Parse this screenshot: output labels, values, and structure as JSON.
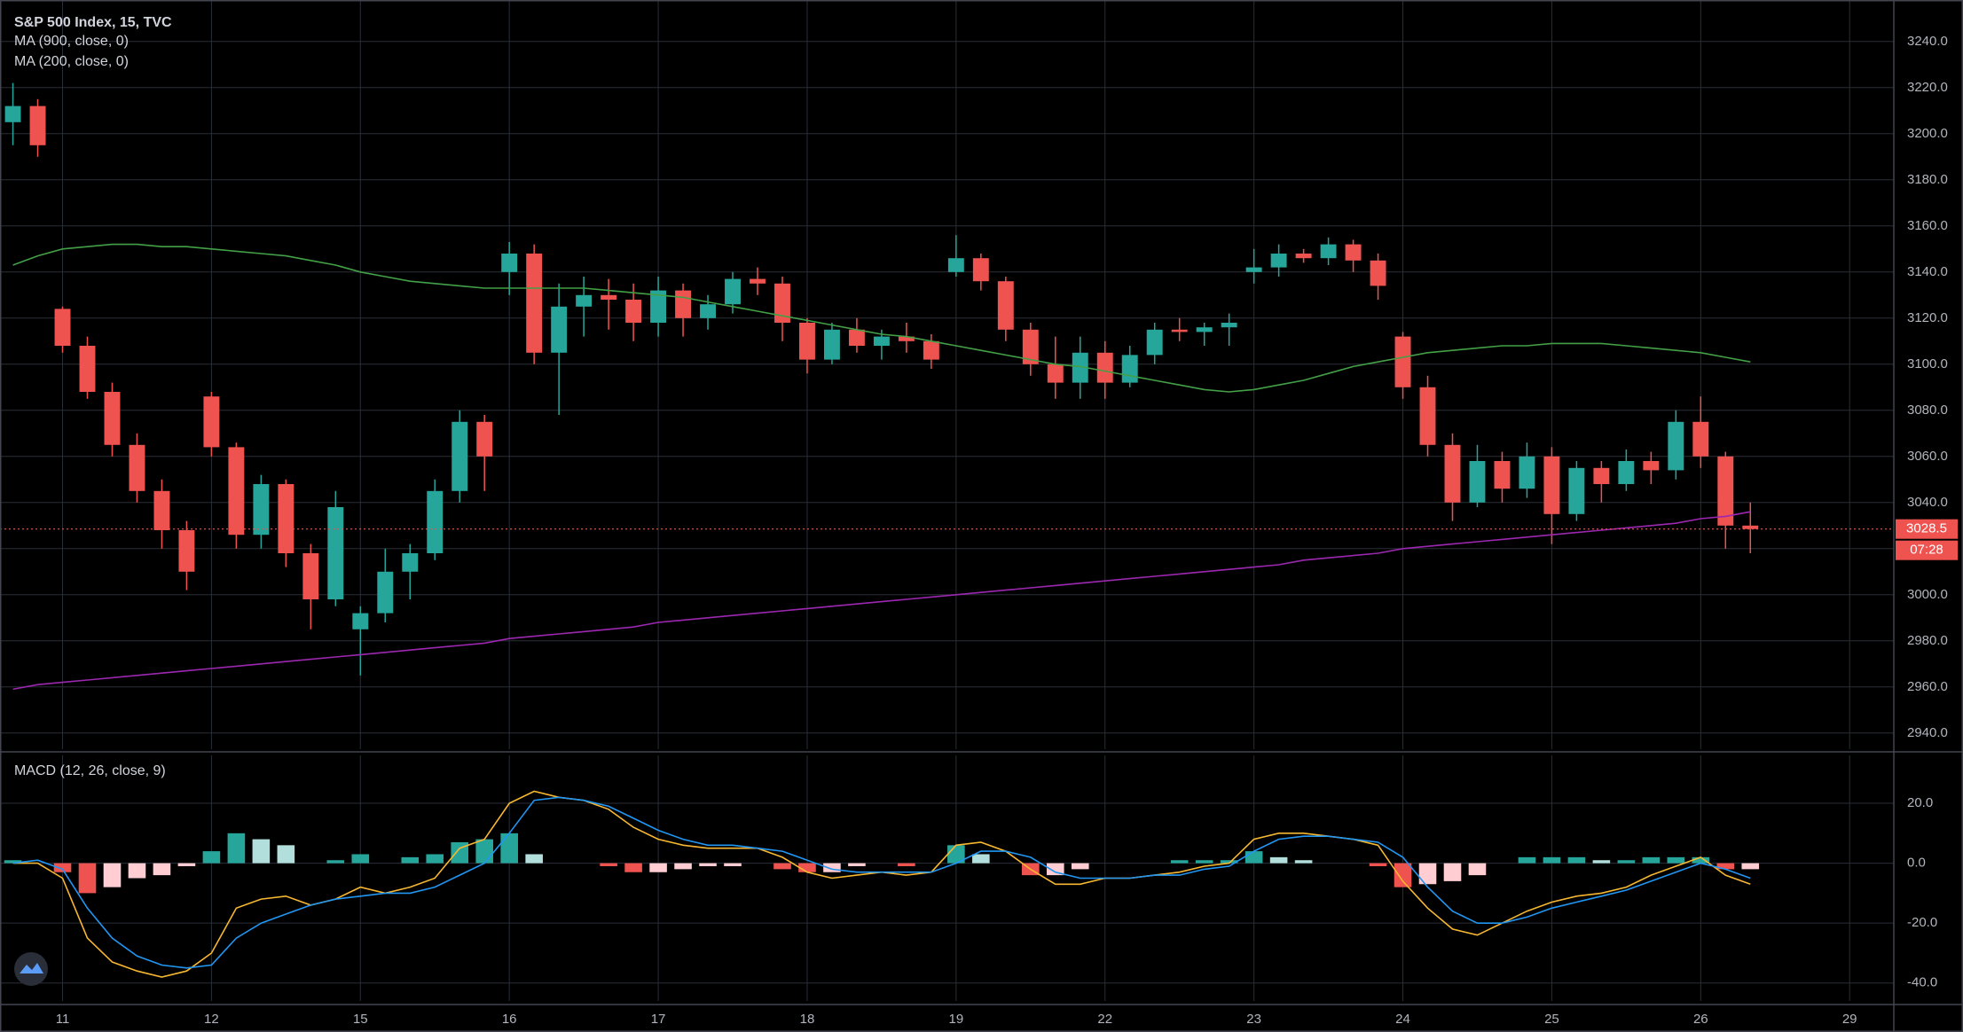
{
  "chart_data": [
    {
      "type": "candlestick",
      "title": "S&P 500 Index, 15, TVC",
      "up_color": "#26a69a",
      "down_color": "#ef5350",
      "grid": true,
      "xlim": [
        -0.52,
        75.78
      ],
      "xticks": [
        {
          "value": 2,
          "label": "11"
        },
        {
          "value": 8,
          "label": "12"
        },
        {
          "value": 14,
          "label": "15"
        },
        {
          "value": 20,
          "label": "16"
        },
        {
          "value": 26,
          "label": "17"
        },
        {
          "value": 32,
          "label": "18"
        },
        {
          "value": 38,
          "label": "19"
        },
        {
          "value": 44,
          "label": "22"
        },
        {
          "value": 50,
          "label": "23"
        },
        {
          "value": 56,
          "label": "24"
        },
        {
          "value": 62,
          "label": "25"
        },
        {
          "value": 68,
          "label": "26"
        },
        {
          "value": 74,
          "label": "29"
        }
      ],
      "ylim": [
        2933,
        3258
      ],
      "yticks": [
        {
          "value": 2940,
          "label": "2940.0"
        },
        {
          "value": 2960,
          "label": "2960.0"
        },
        {
          "value": 2980,
          "label": "2980.0"
        },
        {
          "value": 3000,
          "label": "3000.0"
        },
        {
          "value": 3020,
          "label": "3020.0"
        },
        {
          "value": 3040,
          "label": "3040.0"
        },
        {
          "value": 3060,
          "label": "3060.0"
        },
        {
          "value": 3080,
          "label": "3080.0"
        },
        {
          "value": 3100,
          "label": "3100.0"
        },
        {
          "value": 3120,
          "label": "3120.0"
        },
        {
          "value": 3140,
          "label": "3140.0"
        },
        {
          "value": 3160,
          "label": "3160.0"
        },
        {
          "value": 3180,
          "label": "3180.0"
        },
        {
          "value": 3200,
          "label": "3200.0"
        },
        {
          "value": 3220,
          "label": "3220.0"
        },
        {
          "value": 3240,
          "label": "3240.0"
        }
      ],
      "open": [
        3205,
        3212,
        3124,
        3108,
        3088,
        3065,
        3045,
        3028,
        3086,
        3064,
        3026,
        3048,
        3018,
        2998,
        2985,
        2992,
        3010,
        3018,
        3045,
        3075,
        3140,
        3148,
        3105,
        3125,
        3130,
        3128,
        3118,
        3132,
        3120,
        3126,
        3137,
        3135,
        3118,
        3102,
        3115,
        3108,
        3112,
        3110,
        3140,
        3146,
        3136,
        3115,
        3100,
        3092,
        3105,
        3092,
        3104,
        3115,
        3114,
        3116,
        3140,
        3142,
        3148,
        3146,
        3152,
        3145,
        3112,
        3090,
        3065,
        3040,
        3058,
        3046,
        3060,
        3035,
        3055,
        3048,
        3058,
        3054,
        3075,
        3060,
        3030
      ],
      "high": [
        3222,
        3215,
        3125,
        3112,
        3092,
        3070,
        3050,
        3032,
        3088,
        3066,
        3052,
        3050,
        3022,
        3045,
        2995,
        3020,
        3022,
        3050,
        3080,
        3078,
        3153,
        3152,
        3135,
        3138,
        3137,
        3135,
        3138,
        3135,
        3130,
        3140,
        3142,
        3138,
        3120,
        3118,
        3120,
        3115,
        3118,
        3113,
        3156,
        3148,
        3138,
        3118,
        3112,
        3112,
        3110,
        3108,
        3118,
        3120,
        3118,
        3122,
        3150,
        3152,
        3150,
        3155,
        3154,
        3148,
        3114,
        3095,
        3070,
        3065,
        3062,
        3066,
        3064,
        3058,
        3058,
        3063,
        3062,
        3080,
        3086,
        3062,
        3040
      ],
      "low": [
        3195,
        3190,
        3105,
        3085,
        3060,
        3040,
        3020,
        3002,
        3060,
        3020,
        3020,
        3012,
        2985,
        2995,
        2965,
        2988,
        2998,
        3015,
        3040,
        3045,
        3130,
        3100,
        3078,
        3112,
        3115,
        3110,
        3112,
        3112,
        3115,
        3122,
        3130,
        3110,
        3096,
        3100,
        3105,
        3102,
        3105,
        3098,
        3138,
        3132,
        3110,
        3095,
        3085,
        3085,
        3085,
        3090,
        3100,
        3110,
        3108,
        3108,
        3135,
        3138,
        3144,
        3143,
        3140,
        3128,
        3085,
        3060,
        3032,
        3038,
        3040,
        3042,
        3022,
        3032,
        3040,
        3045,
        3048,
        3050,
        3055,
        3020,
        3018
      ],
      "close": [
        3212,
        3195,
        3108,
        3088,
        3065,
        3045,
        3028,
        3010,
        3064,
        3026,
        3048,
        3018,
        2998,
        3038,
        2992,
        3010,
        3018,
        3045,
        3075,
        3060,
        3148,
        3105,
        3125,
        3130,
        3128,
        3118,
        3132,
        3120,
        3126,
        3137,
        3135,
        3118,
        3102,
        3115,
        3108,
        3112,
        3110,
        3102,
        3146,
        3136,
        3115,
        3100,
        3092,
        3105,
        3092,
        3104,
        3115,
        3114,
        3116,
        3118,
        3142,
        3148,
        3146,
        3152,
        3145,
        3134,
        3090,
        3065,
        3040,
        3058,
        3046,
        3060,
        3035,
        3055,
        3048,
        3058,
        3054,
        3075,
        3060,
        3030,
        3028.5
      ],
      "series": [
        {
          "name": "MA (900, close, 0)",
          "color": "#9c27b0",
          "values": [
            2959,
            2961,
            2962,
            2963,
            2964,
            2965,
            2966,
            2967,
            2968,
            2969,
            2970,
            2971,
            2972,
            2973,
            2974,
            2975,
            2976,
            2977,
            2978,
            2979,
            2981,
            2982,
            2983,
            2984,
            2985,
            2986,
            2988,
            2989,
            2990,
            2991,
            2992,
            2993,
            2994,
            2995,
            2996,
            2997,
            2998,
            2999,
            3000,
            3001,
            3002,
            3003,
            3004,
            3005,
            3006,
            3007,
            3008,
            3009,
            3010,
            3011,
            3012,
            3013,
            3015,
            3016,
            3017,
            3018,
            3020,
            3021,
            3022,
            3023,
            3024,
            3025,
            3026,
            3027,
            3028,
            3029,
            3030,
            3031,
            3033,
            3034,
            3036
          ]
        },
        {
          "name": "MA (200, close, 0)",
          "color": "#43a047",
          "values": [
            3143,
            3147,
            3150,
            3151,
            3152,
            3152,
            3151,
            3151,
            3150,
            3149,
            3148,
            3147,
            3145,
            3143,
            3140,
            3138,
            3136,
            3135,
            3134,
            3133,
            3133,
            3133,
            3133,
            3133,
            3132,
            3131,
            3130,
            3129,
            3127,
            3125,
            3123,
            3121,
            3119,
            3117,
            3115,
            3113,
            3112,
            3110,
            3108,
            3106,
            3104,
            3102,
            3100,
            3099,
            3097,
            3095,
            3093,
            3091,
            3089,
            3088,
            3089,
            3091,
            3093,
            3096,
            3099,
            3101,
            3103,
            3105,
            3106,
            3107,
            3108,
            3108,
            3109,
            3109,
            3109,
            3108,
            3107,
            3106,
            3105,
            3103,
            3101
          ]
        }
      ],
      "last_price": 3028.5,
      "countdown": "07:28"
    },
    {
      "type": "macd",
      "title": "MACD (12, 26, close, 9)",
      "grid": true,
      "ylim": [
        -46,
        36
      ],
      "yticks": [
        {
          "value": -40,
          "label": "-40.0"
        },
        {
          "value": -20,
          "label": "-20.0"
        },
        {
          "value": 0,
          "label": "0.0"
        },
        {
          "value": 20,
          "label": "20.0"
        }
      ],
      "histogram": {
        "colors": [
          "#26a69a",
          "#b2dfdb",
          "#ef5350",
          "#ffcdd2"
        ],
        "values": [
          1,
          0,
          -3,
          -10,
          -8,
          -5,
          -4,
          -1,
          4,
          10,
          8,
          6,
          0,
          1,
          3,
          0,
          2,
          3,
          7,
          8,
          10,
          3,
          0,
          0,
          -1,
          -3,
          -3,
          -2,
          -1,
          -1,
          0,
          -2,
          -3,
          -3,
          -1,
          0,
          -1,
          0,
          6,
          3,
          0,
          -4,
          -4,
          -2,
          0,
          0,
          0,
          1,
          1,
          1,
          4,
          2,
          1,
          0,
          0,
          -1,
          -8,
          -7,
          -6,
          -4,
          0,
          2,
          2,
          2,
          1,
          1,
          2,
          2,
          2,
          -2,
          -2
        ]
      },
      "series": [
        {
          "color": "#f7b731",
          "values": [
            0,
            0,
            -5,
            -25,
            -33,
            -36,
            -38,
            -36,
            -30,
            -15,
            -12,
            -11,
            -14,
            -12,
            -8,
            -10,
            -8,
            -5,
            5,
            8,
            20,
            24,
            22,
            21,
            18,
            12,
            8,
            6,
            5,
            5,
            5,
            2,
            -3,
            -5,
            -4,
            -3,
            -4,
            -3,
            6,
            7,
            4,
            -2,
            -7,
            -7,
            -5,
            -5,
            -4,
            -3,
            -1,
            0,
            8,
            10,
            10,
            9,
            8,
            6,
            -6,
            -15,
            -22,
            -24,
            -20,
            -16,
            -13,
            -11,
            -10,
            -8,
            -4,
            -1,
            2,
            -4,
            -7
          ]
        },
        {
          "color": "#2196f3",
          "values": [
            0,
            1,
            -2,
            -15,
            -25,
            -31,
            -34,
            -35,
            -34,
            -25,
            -20,
            -17,
            -14,
            -12,
            -11,
            -10,
            -10,
            -8,
            -4,
            0,
            10,
            21,
            22,
            21,
            19,
            15,
            11,
            8,
            6,
            6,
            5,
            4,
            1,
            -2,
            -3,
            -3,
            -3,
            -3,
            0,
            4,
            4,
            2,
            -3,
            -5,
            -5,
            -5,
            -4,
            -4,
            -2,
            -1,
            4,
            8,
            9,
            9,
            8,
            7,
            2,
            -8,
            -16,
            -20,
            -20,
            -18,
            -15,
            -13,
            -11,
            -9,
            -6,
            -3,
            0,
            -2,
            -5
          ]
        }
      ]
    }
  ]
}
